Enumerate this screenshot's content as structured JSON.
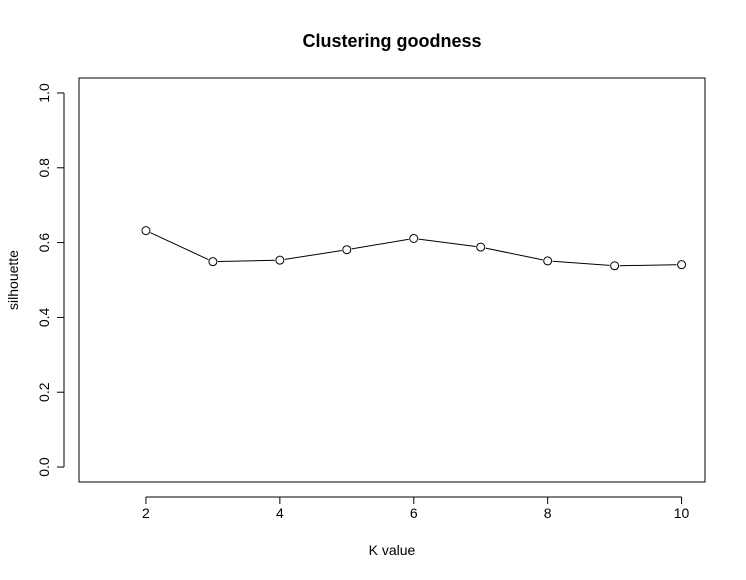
{
  "chart_data": {
    "type": "line",
    "title": "Clustering goodness",
    "xlabel": "K value",
    "ylabel": "silhouette",
    "x": [
      2,
      3,
      4,
      5,
      6,
      7,
      8,
      9,
      10
    ],
    "values": [
      0.632,
      0.549,
      0.553,
      0.581,
      0.611,
      0.588,
      0.551,
      0.538,
      0.541
    ],
    "xlim": [
      1,
      10.35
    ],
    "ylim": [
      -0.04,
      1.04
    ],
    "xticks": [
      2,
      4,
      6,
      8,
      10
    ],
    "yticks": [
      0.0,
      0.2,
      0.4,
      0.6,
      0.8,
      1.0
    ],
    "ytick_labels": [
      "0.0",
      "0.2",
      "0.4",
      "0.6",
      "0.8",
      "1.0"
    ],
    "markers": "open-circle",
    "grid": false,
    "colors": {
      "line": "#000000",
      "marker_fill": "#ffffff"
    }
  }
}
